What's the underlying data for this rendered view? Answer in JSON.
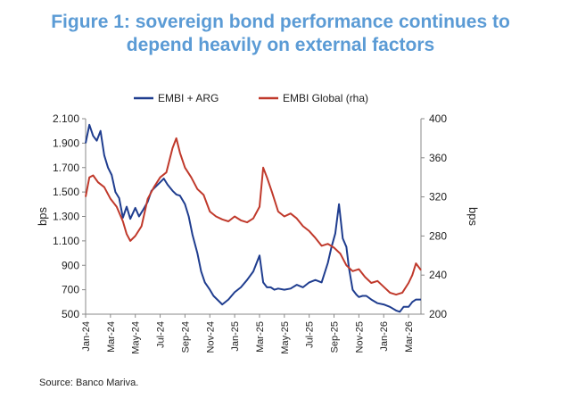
{
  "title_line1": "Figure 1: sovereign bond performance continues to",
  "title_line2": "depend heavily on external factors",
  "source": "Source: Banco Mariva.",
  "colors": {
    "series1": "#1f3d8f",
    "series2": "#c0392b",
    "title": "#5b9bd5"
  },
  "chart_data": {
    "type": "line",
    "title": "Figure 1: sovereign bond performance continues to depend heavily on external factors",
    "ylabel_left": "bps",
    "ylabel_right": "bps",
    "ylim_left": [
      500,
      2100
    ],
    "ylim_right": [
      200,
      400
    ],
    "left_ticks": [
      "2.100",
      "1.900",
      "1.700",
      "1.500",
      "1.300",
      "1.100",
      "900",
      "700",
      "500"
    ],
    "right_ticks": [
      "400",
      "360",
      "320",
      "280",
      "240",
      "200"
    ],
    "x_ticks": [
      "Jan-24",
      "Mar-24",
      "May-24",
      "Jul-24",
      "Sep-24",
      "Nov-24",
      "Jan-25",
      "Mar-25",
      "May-25",
      "Jul-25",
      "Sep-25",
      "Nov-25",
      "Jan-26",
      "Mar-26"
    ],
    "x_range": [
      0,
      27
    ],
    "series": [
      {
        "name": "EMBI + ARG",
        "axis": "left",
        "x": [
          0,
          0.3,
          0.6,
          0.9,
          1.2,
          1.5,
          1.8,
          2.1,
          2.4,
          2.7,
          3.0,
          3.3,
          3.6,
          4.0,
          4.3,
          4.6,
          5.0,
          5.3,
          5.6,
          6.0,
          6.3,
          6.6,
          7.0,
          7.3,
          7.6,
          8.0,
          8.3,
          8.6,
          9.0,
          9.3,
          9.6,
          10.0,
          10.3,
          10.6,
          11.0,
          11.5,
          12.0,
          12.5,
          13.0,
          13.5,
          14.0,
          14.3,
          14.6,
          14.9,
          15.2,
          15.5,
          16.0,
          16.5,
          17.0,
          17.5,
          18.0,
          18.5,
          19.0,
          19.5,
          19.8,
          20.1,
          20.4,
          20.7,
          21.0,
          21.2,
          21.5,
          21.8,
          22.0,
          22.3,
          22.6,
          23.0,
          23.5,
          24.0,
          24.5,
          25.0,
          25.3,
          25.6,
          26.0,
          26.3,
          26.6,
          27.0
        ],
        "values": [
          1900,
          2050,
          1960,
          1920,
          2000,
          1800,
          1700,
          1640,
          1500,
          1450,
          1290,
          1380,
          1280,
          1370,
          1300,
          1350,
          1420,
          1510,
          1540,
          1580,
          1610,
          1560,
          1510,
          1480,
          1470,
          1400,
          1300,
          1150,
          1000,
          850,
          760,
          700,
          650,
          620,
          580,
          620,
          680,
          720,
          780,
          850,
          980,
          760,
          720,
          720,
          700,
          710,
          700,
          710,
          740,
          720,
          760,
          780,
          760,
          920,
          1050,
          1160,
          1400,
          1120,
          1050,
          880,
          700,
          660,
          640,
          650,
          650,
          620,
          590,
          580,
          560,
          530,
          520,
          560,
          560,
          600,
          620,
          620
        ]
      },
      {
        "name": "EMBI Global (rha)",
        "axis": "right",
        "x": [
          0,
          0.3,
          0.6,
          1.0,
          1.5,
          2.0,
          2.5,
          3.0,
          3.3,
          3.6,
          4.0,
          4.5,
          5.0,
          5.5,
          6.0,
          6.5,
          7.0,
          7.3,
          7.6,
          8.0,
          8.5,
          9.0,
          9.5,
          10.0,
          10.5,
          11.0,
          11.5,
          12.0,
          12.5,
          13.0,
          13.5,
          14.0,
          14.3,
          14.6,
          15.0,
          15.5,
          16.0,
          16.5,
          17.0,
          17.5,
          18.0,
          18.5,
          19.0,
          19.5,
          20.0,
          20.5,
          21.0,
          21.5,
          22.0,
          22.5,
          23.0,
          23.5,
          24.0,
          24.5,
          25.0,
          25.5,
          26.0,
          26.3,
          26.6,
          27.0
        ],
        "values": [
          320,
          340,
          342,
          335,
          330,
          318,
          310,
          295,
          282,
          275,
          280,
          290,
          318,
          330,
          340,
          345,
          370,
          380,
          365,
          350,
          340,
          328,
          322,
          305,
          300,
          297,
          295,
          300,
          296,
          294,
          298,
          310,
          350,
          340,
          325,
          305,
          300,
          303,
          298,
          290,
          285,
          278,
          270,
          272,
          268,
          262,
          250,
          244,
          246,
          238,
          232,
          234,
          228,
          222,
          220,
          222,
          232,
          240,
          252,
          245
        ]
      }
    ],
    "legend_position": "top-center"
  }
}
